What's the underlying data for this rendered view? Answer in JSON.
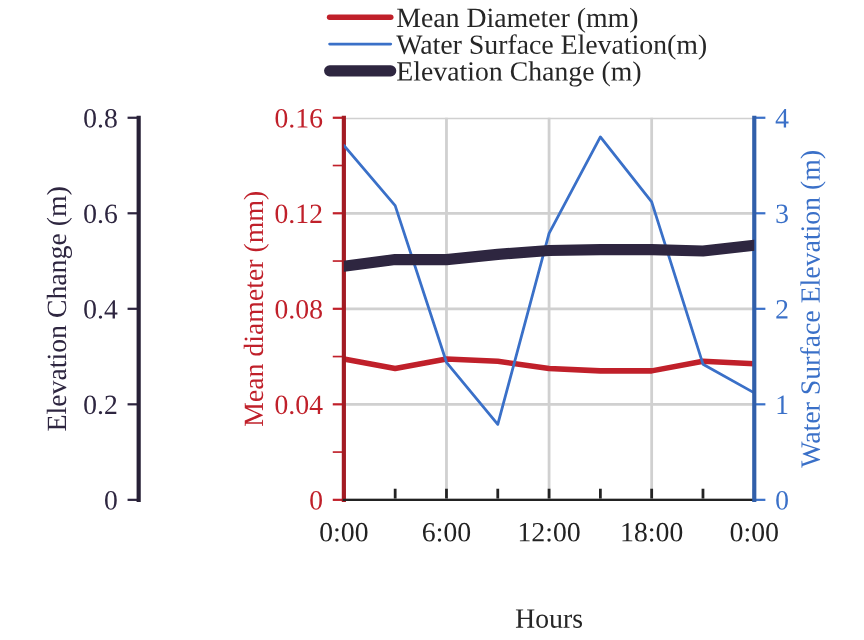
{
  "chart_data": {
    "type": "line",
    "xlabel": "Hours",
    "ylabel": "Mean diameter (mm)",
    "y2label": "Water Surface Elevation (m)",
    "y3label": "Elevation Change (m)",
    "x": [
      0,
      3,
      6,
      9,
      12,
      15,
      18,
      21,
      24
    ],
    "xlim": [
      0,
      24
    ],
    "xticks": [
      {
        "value": 0,
        "label": "0:00"
      },
      {
        "value": 3,
        "label": null
      },
      {
        "value": 6,
        "label": "6:00"
      },
      {
        "value": 9,
        "label": null
      },
      {
        "value": 12,
        "label": "12:00"
      },
      {
        "value": 15,
        "label": null
      },
      {
        "value": 18,
        "label": "18:00"
      },
      {
        "value": 21,
        "label": null
      },
      {
        "value": 24,
        "label": "0:00"
      }
    ],
    "ylim": [
      0,
      0.16
    ],
    "yticks": [
      0,
      {
        "value": 0.02,
        "label": null
      },
      0.04,
      {
        "value": 0.06,
        "label": null
      },
      0.08,
      {
        "value": 0.1,
        "label": null
      },
      0.12,
      {
        "value": 0.14,
        "label": null
      },
      0.16
    ],
    "y2lim": [
      0,
      4
    ],
    "y2ticks": [
      0,
      1,
      2,
      3,
      4
    ],
    "y3lim": [
      0,
      0.8
    ],
    "y3ticks": [
      0,
      0.2,
      0.4,
      0.6,
      0.8
    ],
    "grid": true,
    "legend": "top",
    "series": [
      {
        "name": "Mean Diameter (mm)",
        "color": "#c0202a",
        "values": [
          0.059,
          0.055,
          0.059,
          0.058,
          0.055,
          0.054,
          0.054,
          0.058,
          0.057
        ]
      },
      {
        "name": "Water Surface Elevation(m)",
        "color": "#3a70c8",
        "axis": "y2",
        "values": [
          3.71,
          3.08,
          1.44,
          0.79,
          2.79,
          3.8,
          3.12,
          1.42,
          1.12
        ]
      },
      {
        "name": "Elevation Change (m)",
        "color": "#2e2640",
        "axis": "y3",
        "values": [
          0.489,
          0.503,
          0.503,
          0.514,
          0.522,
          0.524,
          0.524,
          0.521,
          0.533
        ]
      }
    ]
  }
}
